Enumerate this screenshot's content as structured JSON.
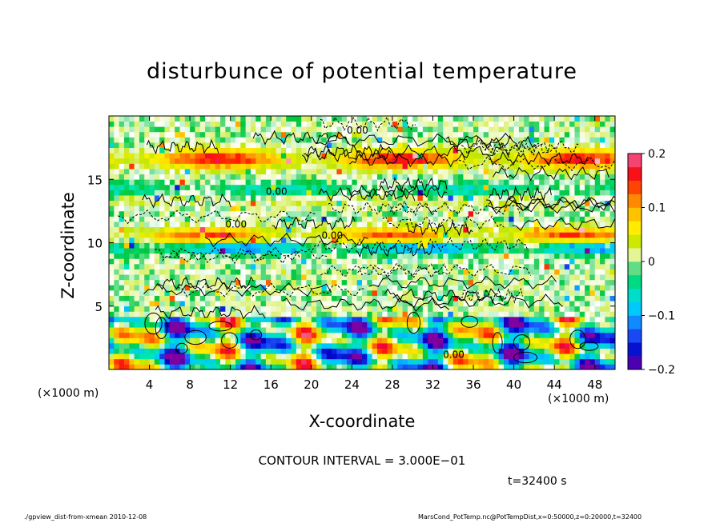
{
  "chart_data": {
    "type": "heatmap",
    "title": "disturbunce of potential temperature",
    "xlabel": "X-coordinate",
    "ylabel": "Z-coordinate",
    "x_unit": "(×1000 m)",
    "x_unit_right": "(×1000 m)",
    "xlim": [
      0,
      50
    ],
    "ylim": [
      0,
      20
    ],
    "x_ticks": [
      4,
      8,
      12,
      16,
      20,
      24,
      28,
      32,
      36,
      40,
      44,
      48
    ],
    "y_ticks": [
      5,
      10,
      15
    ],
    "colorbar": {
      "range": [
        -0.2,
        0.2
      ],
      "tick_values": [
        0.2,
        0.1,
        0,
        -0.1,
        -0.2
      ],
      "tick_labels": [
        "0.2",
        "0.1",
        "0",
        "−0.1",
        "−0.2"
      ]
    },
    "contour_labels": [
      "0.00",
      "0.00",
      "0.00",
      "0.00",
      "0.00"
    ],
    "contour_interval": "CONTOUR INTERVAL = 3.000E−01",
    "time_label": "t=32400 s",
    "footer_left": "./gpview_dist-from-xmean 2010-12-08",
    "footer_right": "MarsCond_PotTemp.nc@PotTempDist,x=0:50000,z=0:20000,t=32400"
  }
}
